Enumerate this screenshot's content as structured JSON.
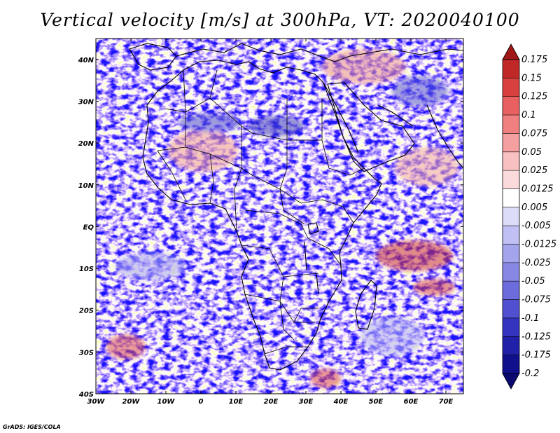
{
  "title": "Vertical velocity [m/s] at 300hPa, VT: 2020040100",
  "credit": "GrADS: IGES/COLA",
  "map": {
    "region": "Africa",
    "variable": "Vertical velocity",
    "units": "m/s",
    "level": "300hPa",
    "valid_time": "2020040100",
    "lon_range": [
      -30,
      75
    ],
    "lat_range": [
      -40,
      45
    ],
    "lon_ticks": [
      "30W",
      "20W",
      "10W",
      "0",
      "10E",
      "20E",
      "30E",
      "40E",
      "50E",
      "60E",
      "70E"
    ],
    "lat_ticks": [
      "40N",
      "30N",
      "20N",
      "10N",
      "EQ",
      "10S",
      "20S",
      "30S",
      "40S"
    ]
  },
  "colorbar": {
    "labels": [
      "0.175",
      "0.15",
      "0.125",
      "0.1",
      "0.075",
      "0.05",
      "0.025",
      "0.0125",
      "0.005",
      "-0.005",
      "-0.0125",
      "-0.025",
      "-0.05",
      "-0.075",
      "-0.1",
      "-0.125",
      "-0.175",
      "-0.2"
    ],
    "colors": [
      "#a01818",
      "#c02828",
      "#d84040",
      "#e86060",
      "#f08080",
      "#f4a0a0",
      "#f8c0c0",
      "#fadada",
      "#ffffff",
      "#dcdcf8",
      "#c0c0f4",
      "#a4a4ec",
      "#8888e4",
      "#6c6cdc",
      "#5050d0",
      "#3434c0",
      "#2020a8",
      "#10108c",
      "#0a0a70"
    ]
  }
}
